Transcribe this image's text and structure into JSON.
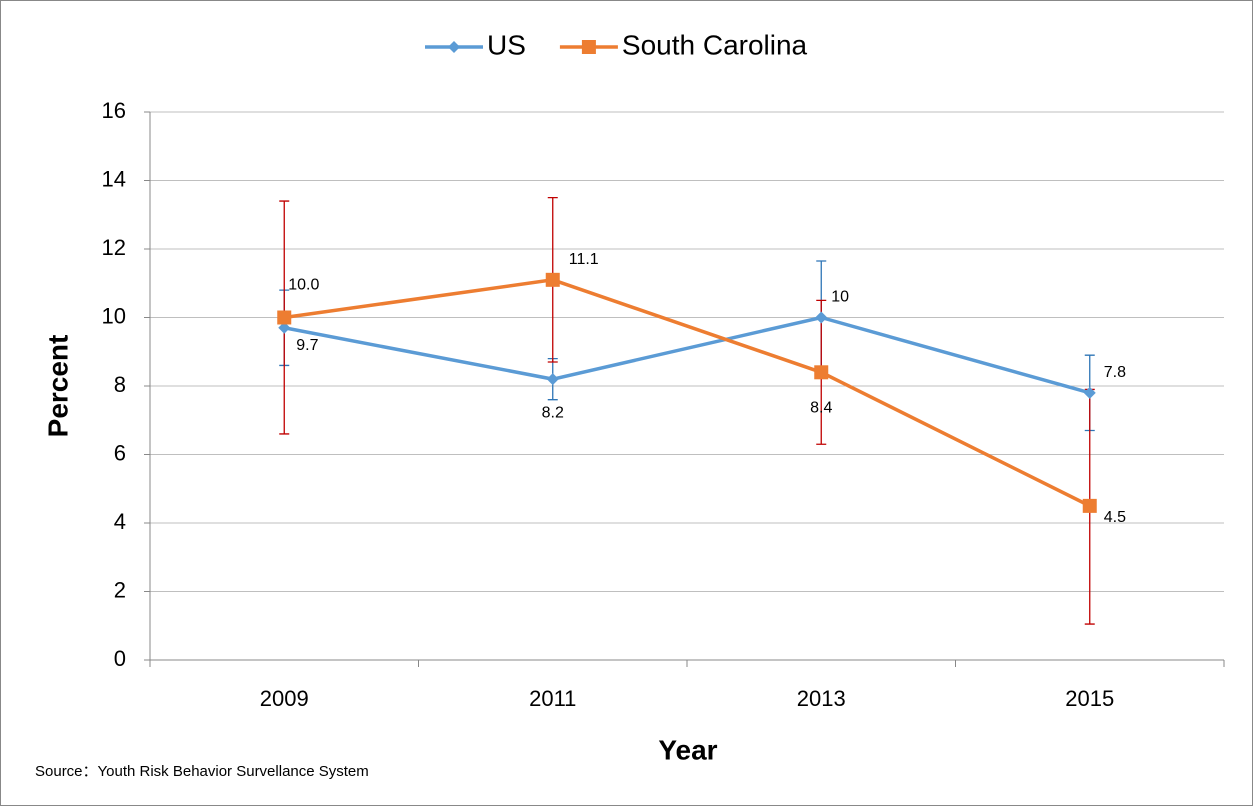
{
  "chart_data": {
    "type": "line",
    "x_label": "Year",
    "y_label": "Percent",
    "source": "Source：Youth Risk Behavior Survellance System",
    "categories": [
      "2009",
      "2011",
      "2013",
      "2015"
    ],
    "series": [
      {
        "name": "US",
        "color": "#5b9bd5",
        "error_color": "#2e75b6",
        "marker": "diamond",
        "values": [
          9.7,
          8.2,
          10,
          7.8
        ],
        "lower": [
          8.6,
          7.6,
          8.5,
          6.7
        ],
        "upper": [
          10.8,
          8.8,
          11.65,
          8.9
        ]
      },
      {
        "name": "South Carolina",
        "color": "#ed7d31",
        "error_color": "#c00000",
        "marker": "square",
        "values": [
          10,
          11.1,
          8.4,
          4.5
        ],
        "value_labels": [
          "10.0",
          "11.1",
          "8.4",
          "4.5"
        ],
        "lower": [
          6.6,
          8.7,
          6.3,
          1.05
        ],
        "upper": [
          13.4,
          13.5,
          10.5,
          7.9
        ]
      }
    ],
    "ylim": [
      0,
      16
    ],
    "yticks": [
      0,
      2,
      4,
      6,
      8,
      10,
      12,
      14,
      16
    ],
    "grid": true,
    "legend": "top"
  }
}
